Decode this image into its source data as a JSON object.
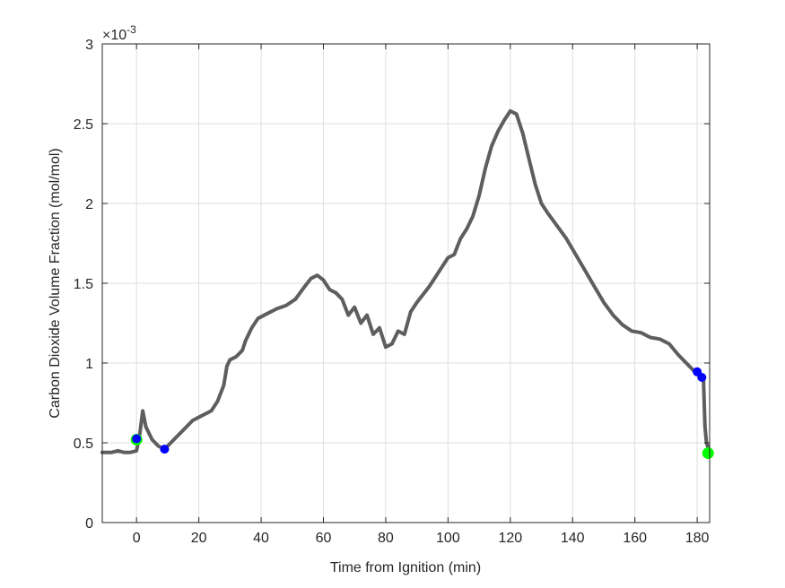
{
  "chart_data": {
    "type": "line",
    "title": "",
    "xlabel": "Time from Ignition (min)",
    "ylabel": "Carbon Dioxide Volume Fraction (mol/mol)",
    "y_exponent_label": "×10",
    "y_exponent_power": "-3",
    "xlim": [
      -11,
      184
    ],
    "ylim": [
      0,
      3
    ],
    "x_ticks": [
      0,
      20,
      40,
      60,
      80,
      100,
      120,
      140,
      160,
      180
    ],
    "x_tick_labels": [
      "0",
      "20",
      "40",
      "60",
      "80",
      "100",
      "120",
      "140",
      "160",
      "180"
    ],
    "y_ticks": [
      0,
      0.5,
      1,
      1.5,
      2,
      2.5,
      3
    ],
    "y_tick_labels": [
      "0",
      "0.5",
      "1",
      "1.5",
      "2",
      "2.5",
      "3"
    ],
    "grid": true,
    "line_color": "#5e5e5e",
    "series": [
      {
        "values_x": [
          -11,
          -8,
          -6,
          -4,
          -2,
          0,
          1,
          2,
          3,
          5,
          7,
          9,
          12,
          15,
          18,
          21,
          24,
          26,
          28,
          29,
          30,
          32,
          34,
          35,
          37,
          39,
          42,
          45,
          48,
          51,
          54,
          56,
          58,
          60,
          62,
          64,
          66,
          68,
          70,
          72,
          74,
          76,
          78,
          80,
          82,
          84,
          86,
          88,
          90,
          92,
          94,
          96,
          98,
          100,
          102,
          104,
          106,
          108,
          110,
          112,
          114,
          116,
          118,
          120,
          122,
          124,
          126,
          128,
          130,
          132,
          135,
          138,
          141,
          144,
          147,
          150,
          153,
          156,
          159,
          162,
          165,
          168,
          171,
          174,
          177,
          179,
          180,
          181,
          182,
          182.5,
          183,
          184
        ],
        "values_y": [
          0.44,
          0.44,
          0.45,
          0.44,
          0.44,
          0.45,
          0.55,
          0.7,
          0.6,
          0.52,
          0.48,
          0.46,
          0.52,
          0.58,
          0.64,
          0.67,
          0.7,
          0.76,
          0.86,
          0.98,
          1.02,
          1.04,
          1.08,
          1.14,
          1.22,
          1.28,
          1.31,
          1.34,
          1.36,
          1.4,
          1.48,
          1.53,
          1.55,
          1.52,
          1.46,
          1.44,
          1.4,
          1.3,
          1.35,
          1.25,
          1.3,
          1.18,
          1.22,
          1.1,
          1.12,
          1.2,
          1.18,
          1.32,
          1.38,
          1.43,
          1.48,
          1.54,
          1.6,
          1.66,
          1.68,
          1.78,
          1.84,
          1.92,
          2.05,
          2.22,
          2.36,
          2.45,
          2.52,
          2.58,
          2.56,
          2.44,
          2.28,
          2.12,
          2.0,
          1.94,
          1.86,
          1.78,
          1.68,
          1.58,
          1.48,
          1.38,
          1.3,
          1.24,
          1.2,
          1.19,
          1.16,
          1.15,
          1.12,
          1.05,
          0.99,
          0.95,
          0.93,
          0.92,
          0.9,
          0.6,
          0.5,
          0.44
        ]
      }
    ],
    "markers": [
      {
        "name": "blue",
        "color": "#0000ff",
        "points": [
          [
            0,
            0.525
          ],
          [
            9,
            0.46
          ],
          [
            180,
            0.945
          ],
          [
            181.5,
            0.91
          ]
        ]
      },
      {
        "name": "green",
        "color": "#00ff00",
        "points": [
          [
            0,
            0.52
          ],
          [
            183.5,
            0.435
          ]
        ]
      }
    ]
  }
}
